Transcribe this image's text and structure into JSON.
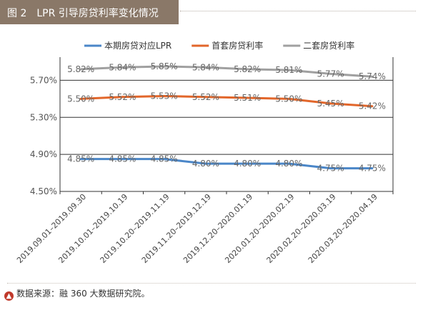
{
  "title": "图 2　LPR 引导房贷利率变化情况",
  "source": "数据来源：融 360 大数据研究院。",
  "chart_data": {
    "type": "line",
    "categories": [
      "2019.09.01–2019.09.30",
      "2019.10.01–2019.10.19",
      "2019.10.20–2019.11.19",
      "2019.11.20–2019.12.19",
      "2019.12.20–2020.01.19",
      "2020.01.20–2020.02.19",
      "2020.02.20–2020.03.19",
      "2020.03.20–2020.04.19"
    ],
    "series": [
      {
        "name": "本期房贷对应LPR",
        "color": "#4a86c8",
        "values": [
          4.85,
          4.85,
          4.85,
          4.8,
          4.8,
          4.8,
          4.75,
          4.75
        ],
        "labels": [
          "4.85%",
          "4.85%",
          "4.85%",
          "4.80%",
          "4.80%",
          "4.80%",
          "4.75%",
          "4.75%"
        ]
      },
      {
        "name": "首套房贷利率",
        "color": "#e2662a",
        "values": [
          5.5,
          5.52,
          5.53,
          5.52,
          5.51,
          5.5,
          5.45,
          5.42
        ],
        "labels": [
          "5.50%",
          "5.52%",
          "5.53%",
          "5.52%",
          "5.51%",
          "5.50%",
          "5.45%",
          "5.42%"
        ]
      },
      {
        "name": "二套房贷利率",
        "color": "#a0a0a0",
        "values": [
          5.82,
          5.84,
          5.85,
          5.84,
          5.82,
          5.81,
          5.77,
          5.74
        ],
        "labels": [
          "5.82%",
          "5.84%",
          "5.85%",
          "5.84%",
          "5.82%",
          "5.81%",
          "5.77%",
          "5.74%"
        ]
      }
    ],
    "yticks": [
      4.5,
      4.9,
      5.3,
      5.7
    ],
    "ytick_labels": [
      "4.50%",
      "4.90%",
      "5.30%",
      "5.70%"
    ],
    "ylim": [
      4.5,
      5.95
    ],
    "grid": true,
    "legend": "top"
  }
}
